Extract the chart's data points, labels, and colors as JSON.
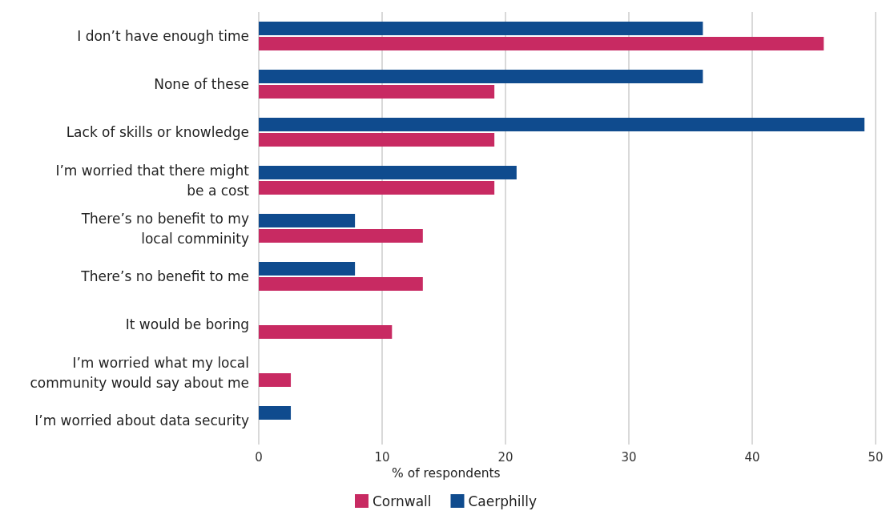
{
  "chart_data": {
    "type": "bar",
    "orientation": "horizontal",
    "categories": [
      "I don’t have enough time",
      "None of these",
      "Lack of skills or knowledge",
      "I’m worried that there might\nbe a cost",
      "There’s no benefit to my\nlocal comminity",
      "There’s no benefit to me",
      "It would be boring",
      "I’m worried what my local\ncommunity would say about me",
      "I’m worried about data security"
    ],
    "series": [
      {
        "name": "Cornwall",
        "color": "#c82a62",
        "values": [
          45.8,
          19.1,
          19.1,
          19.1,
          13.3,
          13.3,
          10.8,
          2.6,
          null
        ]
      },
      {
        "name": "Caerphilly",
        "color": "#0f4b8e",
        "values": [
          36,
          36,
          49.1,
          20.9,
          7.8,
          7.8,
          null,
          null,
          2.6
        ]
      }
    ],
    "xlabel": "% of respondents",
    "xlim": [
      0,
      50
    ],
    "xticks": [
      0,
      10,
      20,
      30,
      40,
      50
    ],
    "grid": "x",
    "legend": "bottom"
  }
}
